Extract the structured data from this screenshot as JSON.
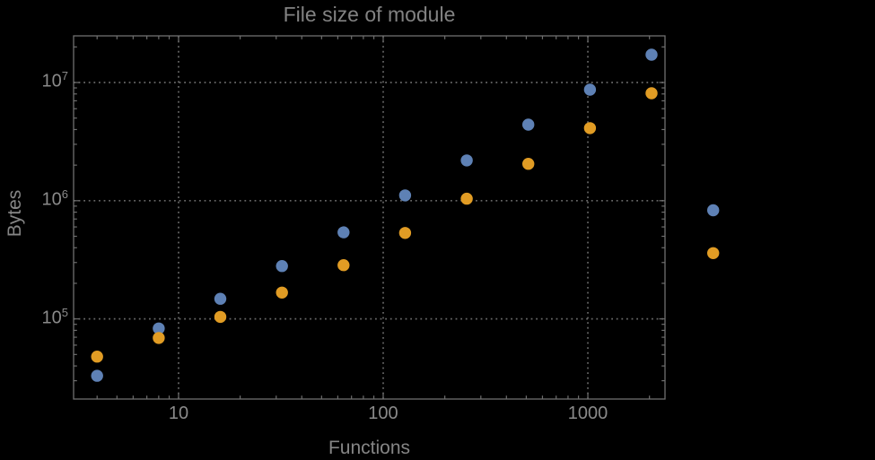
{
  "title": "File size of module",
  "axes": {
    "x_label": "Functions",
    "y_label": "Bytes"
  },
  "colors": {
    "background": "#000000",
    "frame": "#6f6f6f",
    "grid": "#686868",
    "text": "#858585",
    "series_blue": "#5e81b5",
    "series_orange": "#e19c24"
  },
  "chart_data": {
    "type": "scatter",
    "title": "File size of module",
    "xlabel": "Functions",
    "ylabel": "Bytes",
    "x_scale": "log",
    "y_scale": "log",
    "xlim": [
      3.07,
      2382
    ],
    "ylim": [
      21000,
      24800000
    ],
    "grid": true,
    "legend": false,
    "x": [
      4,
      8,
      16,
      32,
      64,
      128,
      256,
      512,
      1024,
      2048,
      4096
    ],
    "series": [
      {
        "name": "series-blue",
        "color": "#5e81b5",
        "values": [
          33000,
          83000,
          148000,
          280000,
          540000,
          1110000,
          2190000,
          4400000,
          8700000,
          17200000,
          830000
        ]
      },
      {
        "name": "series-orange",
        "color": "#e19c24",
        "values": [
          48000,
          69000,
          104000,
          167000,
          285000,
          533000,
          1040000,
          2050000,
          4110000,
          8110000,
          360000
        ]
      }
    ],
    "x_ticks": [
      {
        "label": "10",
        "value": 10
      },
      {
        "label": "100",
        "value": 100
      },
      {
        "label": "1000",
        "value": 1000
      }
    ],
    "y_ticks": [
      {
        "base": "10",
        "exp": "5",
        "value": 100000
      },
      {
        "base": "10",
        "exp": "6",
        "value": 1000000
      },
      {
        "base": "10",
        "exp": "7",
        "value": 10000000
      }
    ]
  }
}
